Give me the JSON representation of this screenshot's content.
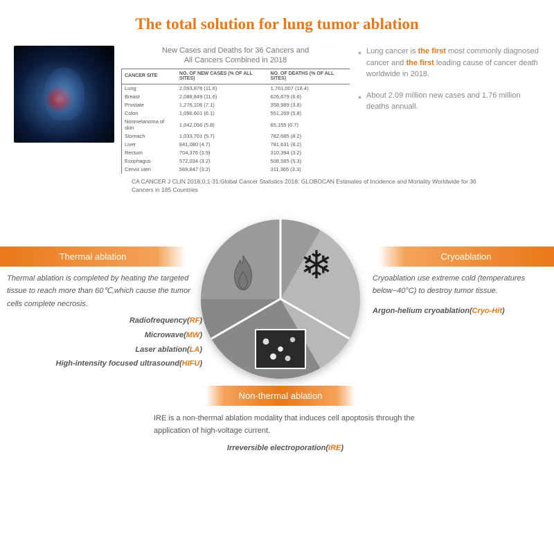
{
  "title": "The total solution for lung tumor ablation",
  "table": {
    "caption_l1": "New Cases and Deaths for 36 Cancers and",
    "caption_l2": "All Cancers Combined in 2018",
    "headers": [
      "CANCER SITE",
      "NO. OF NEW CASES (% OF ALL SITES)",
      "NO. OF DEATHS (% OF ALL SITES)"
    ],
    "rows": [
      [
        "Lung",
        "2,093,876 (11.6)",
        "1,761,007 (18.4)"
      ],
      [
        "Breast",
        "2,088,849 (11.6)",
        "626,679 (6.6)"
      ],
      [
        "Prostate",
        "1,276,106 (7.1)",
        "358,989 (3.8)"
      ],
      [
        "Colon",
        "1,096,601 (6.1)",
        "551,269 (5.8)"
      ],
      [
        "Nonmelanoma of skin",
        "1,042,056 (5.8)",
        "65,155 (0.7)"
      ],
      [
        "Stomach",
        "1,033,701 (5.7)",
        "782,685 (8.2)"
      ],
      [
        "Liver",
        "841,080 (4.7)",
        "781,631 (8.2)"
      ],
      [
        "Rectum",
        "704,376 (3.9)",
        "310,394 (3.2)"
      ],
      [
        "Esophagus",
        "572,034 (3.2)",
        "508,585 (5.3)"
      ],
      [
        "Cervix uteri",
        "569,847 (3.2)",
        "311,365 (3.3)"
      ]
    ]
  },
  "bullets": {
    "b1_pre": "Lung cancer is ",
    "b1_em1": "the first",
    "b1_mid": " most commonly diagnosed cancer and ",
    "b1_em2": "the first",
    "b1_post": " leading cause of cancer death worldwide in 2018.",
    "b2": "About 2.09 million new cases and 1.76 million deaths annuall."
  },
  "citation": "CA CANCER J CLIN 2018;0;1-31:Global Cancer Statistics 2018: GLOBOCAN Estimates of Incidence and Mortality Worldwide for 36 Cancers in 185 Countries",
  "diagram": {
    "thermal": {
      "tag": "Thermal ablation",
      "desc": "Thermal ablation is completed by heating the targeted tissue to reach more than 60℃,which cause the tumor cells complete necrosis.",
      "techs": [
        {
          "name": "Radiofrequency",
          "abbr": "RF"
        },
        {
          "name": "Microwave",
          "abbr": "MW"
        },
        {
          "name": "Laser ablation",
          "abbr": "LA"
        },
        {
          "name": "High-intensity focused ultrasound",
          "abbr": "HIFU"
        }
      ]
    },
    "cryo": {
      "tag": "Cryoablation",
      "desc_pre": "Cryoablation",
      "desc_post": " use extreme cold (temperatures below−40°C) to destroy tumor tissue.",
      "tech_name": "Argon-helium cryoablation",
      "tech_abbr": "Cryo-Hit"
    },
    "nonthermal": {
      "tag": "Non-thermal ablation",
      "desc": "IRE is a non-thermal ablation modality that induces cell apoptosis through the application of high-voltage current.",
      "tech_name": "Irreversible electroporation",
      "tech_abbr": "IRE"
    }
  },
  "colors": {
    "accent": "#e97818",
    "text": "#555555"
  }
}
